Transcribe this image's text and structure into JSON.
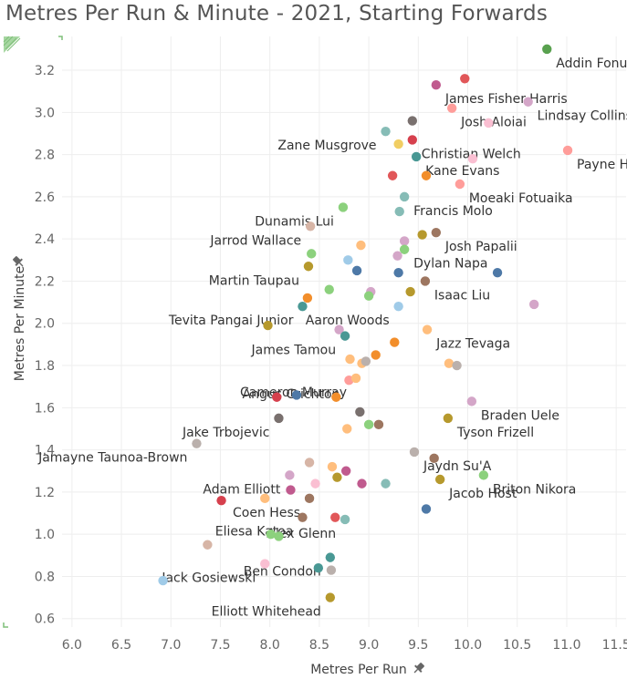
{
  "chart_data": {
    "type": "scatter",
    "title": "Metres Per Run & Minute - 2021, Starting Forwards",
    "xlabel": "Metres Per Run",
    "ylabel": "Metres Per Minute",
    "xlim": [
      5.9,
      11.6
    ],
    "ylim": [
      0.56,
      3.36
    ],
    "xticks": [
      "6.0",
      "6.5",
      "7.0",
      "7.5",
      "8.0",
      "8.5",
      "9.0",
      "9.5",
      "10.0",
      "10.5",
      "11.0",
      "11.5"
    ],
    "xtick_values": [
      6.0,
      6.5,
      7.0,
      7.5,
      8.0,
      8.5,
      9.0,
      9.5,
      10.0,
      10.5,
      11.0,
      11.5
    ],
    "yticks": [
      "0.6",
      "0.8",
      "1.0",
      "1.2",
      "1.4",
      "1.6",
      "1.8",
      "2.0",
      "2.2",
      "2.4",
      "2.6",
      "2.8",
      "3.0",
      "3.2"
    ],
    "ytick_values": [
      0.6,
      0.8,
      1.0,
      1.2,
      1.4,
      1.6,
      1.8,
      2.0,
      2.2,
      2.4,
      2.6,
      2.8,
      3.0,
      3.2
    ],
    "grid": true,
    "points": [
      {
        "x": 10.8,
        "y": 3.3,
        "color": "#59a14f",
        "label": "Addin Fonua-Blake"
      },
      {
        "x": 9.97,
        "y": 3.16,
        "color": "#e15759"
      },
      {
        "x": 9.68,
        "y": 3.13,
        "color": "#c05a8e",
        "label": "James Fisher-Harris"
      },
      {
        "x": 9.84,
        "y": 3.02,
        "color": "#ff9d9a",
        "label": "Josh Aloiai"
      },
      {
        "x": 10.61,
        "y": 3.05,
        "color": "#d4a6c8",
        "label": "Lindsay Collins"
      },
      {
        "x": 9.44,
        "y": 2.96,
        "color": "#79706e"
      },
      {
        "x": 10.21,
        "y": 2.95,
        "color": "#fabfd2"
      },
      {
        "x": 9.17,
        "y": 2.91,
        "color": "#86bcb6",
        "label": "Zane Musgrove"
      },
      {
        "x": 9.44,
        "y": 2.87,
        "color": "#d6404d",
        "label": "Christian Welch"
      },
      {
        "x": 9.3,
        "y": 2.85,
        "color": "#f1ce63"
      },
      {
        "x": 11.01,
        "y": 2.82,
        "color": "#ff9d9a",
        "label": "Payne Haas"
      },
      {
        "x": 9.48,
        "y": 2.79,
        "color": "#499894",
        "label": "Kane Evans"
      },
      {
        "x": 10.05,
        "y": 2.78,
        "color": "#fabfd2"
      },
      {
        "x": 9.24,
        "y": 2.7,
        "color": "#e15759"
      },
      {
        "x": 9.58,
        "y": 2.7,
        "color": "#f28e2b"
      },
      {
        "x": 9.92,
        "y": 2.66,
        "color": "#ff9d9a",
        "label": "Moeaki Fotuaika"
      },
      {
        "x": 9.36,
        "y": 2.6,
        "color": "#86bcb6",
        "label": "Francis Molo"
      },
      {
        "x": 8.74,
        "y": 2.55,
        "color": "#8cd17d",
        "label": "Dunamis Lui"
      },
      {
        "x": 9.31,
        "y": 2.53,
        "color": "#86bcb6"
      },
      {
        "x": 8.41,
        "y": 2.46,
        "color": "#d7b5a6",
        "label": "Jarrod Wallace"
      },
      {
        "x": 9.54,
        "y": 2.42,
        "color": "#b6992d"
      },
      {
        "x": 9.68,
        "y": 2.43,
        "color": "#9d7660",
        "label": "Josh Papalii"
      },
      {
        "x": 9.36,
        "y": 2.39,
        "color": "#d4a6c8"
      },
      {
        "x": 8.92,
        "y": 2.37,
        "color": "#ffbe7d"
      },
      {
        "x": 9.36,
        "y": 2.35,
        "color": "#8cd17d",
        "label": "Dylan Napa"
      },
      {
        "x": 8.42,
        "y": 2.33,
        "color": "#8cd17d"
      },
      {
        "x": 9.29,
        "y": 2.32,
        "color": "#d4a6c8"
      },
      {
        "x": 8.79,
        "y": 2.3,
        "color": "#a0cbe8"
      },
      {
        "x": 8.39,
        "y": 2.27,
        "color": "#b6992d",
        "label": "Martin Taupau"
      },
      {
        "x": 8.88,
        "y": 2.25,
        "color": "#4e79a7"
      },
      {
        "x": 9.3,
        "y": 2.24,
        "color": "#4e79a7"
      },
      {
        "x": 10.3,
        "y": 2.24,
        "color": "#4e79a7"
      },
      {
        "x": 9.57,
        "y": 2.2,
        "color": "#9d7660",
        "label": "Isaac Liu"
      },
      {
        "x": 8.6,
        "y": 2.16,
        "color": "#8cd17d"
      },
      {
        "x": 9.02,
        "y": 2.15,
        "color": "#d4a6c8"
      },
      {
        "x": 9.0,
        "y": 2.13,
        "color": "#8cd17d"
      },
      {
        "x": 9.42,
        "y": 2.15,
        "color": "#b6992d"
      },
      {
        "x": 8.38,
        "y": 2.12,
        "color": "#f28e2b"
      },
      {
        "x": 10.67,
        "y": 2.09,
        "color": "#d4a6c8"
      },
      {
        "x": 8.33,
        "y": 2.08,
        "color": "#499894",
        "label": "Tevita Pangai Junior"
      },
      {
        "x": 9.3,
        "y": 2.08,
        "color": "#a0cbe8",
        "label": "Aaron Woods"
      },
      {
        "x": 7.98,
        "y": 1.99,
        "color": "#b6992d"
      },
      {
        "x": 8.7,
        "y": 1.97,
        "color": "#d4a6c8"
      },
      {
        "x": 8.76,
        "y": 1.94,
        "color": "#499894",
        "label": "James Tamou"
      },
      {
        "x": 9.26,
        "y": 1.91,
        "color": "#f28e2b"
      },
      {
        "x": 9.59,
        "y": 1.97,
        "color": "#ffbe7d",
        "label": "Jazz Tevaga"
      },
      {
        "x": 9.07,
        "y": 1.85,
        "color": "#f28e2b"
      },
      {
        "x": 8.81,
        "y": 1.83,
        "color": "#ffbe7d"
      },
      {
        "x": 8.93,
        "y": 1.81,
        "color": "#ffbe7d"
      },
      {
        "x": 8.97,
        "y": 1.82,
        "color": "#bab0ac"
      },
      {
        "x": 9.81,
        "y": 1.81,
        "color": "#ffbe7d"
      },
      {
        "x": 9.89,
        "y": 1.8,
        "color": "#bab0ac"
      },
      {
        "x": 8.8,
        "y": 1.73,
        "color": "#ff9d9a",
        "label": "Angus Crichton"
      },
      {
        "x": 8.87,
        "y": 1.74,
        "color": "#ffbe7d",
        "label": "Cameron Murray"
      },
      {
        "x": 8.07,
        "y": 1.65,
        "color": "#d6404d"
      },
      {
        "x": 8.27,
        "y": 1.66,
        "color": "#4e79a7"
      },
      {
        "x": 8.67,
        "y": 1.65,
        "color": "#f28e2b"
      },
      {
        "x": 10.04,
        "y": 1.63,
        "color": "#d4a6c8",
        "label": "Braden Uele"
      },
      {
        "x": 8.91,
        "y": 1.58,
        "color": "#79706e"
      },
      {
        "x": 8.09,
        "y": 1.55,
        "color": "#79706e",
        "label": "Jake Trbojevic"
      },
      {
        "x": 9.8,
        "y": 1.55,
        "color": "#b6992d",
        "label": "Tyson Frizell"
      },
      {
        "x": 9.0,
        "y": 1.52,
        "color": "#8cd17d"
      },
      {
        "x": 9.1,
        "y": 1.52,
        "color": "#9d7660"
      },
      {
        "x": 8.78,
        "y": 1.5,
        "color": "#ffbe7d"
      },
      {
        "x": 7.26,
        "y": 1.43,
        "color": "#bab0ac",
        "label": "Jamayne Taunoa-Brown"
      },
      {
        "x": 9.46,
        "y": 1.39,
        "color": "#bab0ac",
        "label": "Jaydn Su'A"
      },
      {
        "x": 9.66,
        "y": 1.36,
        "color": "#9d7660"
      },
      {
        "x": 8.4,
        "y": 1.34,
        "color": "#d7b5a6"
      },
      {
        "x": 8.63,
        "y": 1.32,
        "color": "#ffbe7d"
      },
      {
        "x": 8.77,
        "y": 1.3,
        "color": "#c05a8e"
      },
      {
        "x": 8.2,
        "y": 1.28,
        "color": "#d4a6c8",
        "label": "Adam Elliott"
      },
      {
        "x": 8.68,
        "y": 1.27,
        "color": "#b6992d"
      },
      {
        "x": 10.16,
        "y": 1.28,
        "color": "#8cd17d",
        "label": "Briton Nikora"
      },
      {
        "x": 9.72,
        "y": 1.26,
        "color": "#b6992d",
        "label": "Jacob Host"
      },
      {
        "x": 8.46,
        "y": 1.24,
        "color": "#fabfd2"
      },
      {
        "x": 8.93,
        "y": 1.24,
        "color": "#c05a8e"
      },
      {
        "x": 9.17,
        "y": 1.24,
        "color": "#86bcb6"
      },
      {
        "x": 8.21,
        "y": 1.21,
        "color": "#c05a8e"
      },
      {
        "x": 8.4,
        "y": 1.17,
        "color": "#9d7660",
        "label": "Coen Hess"
      },
      {
        "x": 7.51,
        "y": 1.16,
        "color": "#d6404d"
      },
      {
        "x": 7.95,
        "y": 1.17,
        "color": "#ffbe7d"
      },
      {
        "x": 9.58,
        "y": 1.12,
        "color": "#4e79a7"
      },
      {
        "x": 8.33,
        "y": 1.08,
        "color": "#9d7660",
        "label": "Eliesa Katoa"
      },
      {
        "x": 8.66,
        "y": 1.08,
        "color": "#e15759"
      },
      {
        "x": 8.76,
        "y": 1.07,
        "color": "#86bcb6",
        "label": "Alex Glenn"
      },
      {
        "x": 8.01,
        "y": 1.0,
        "color": "#8cd17d"
      },
      {
        "x": 8.09,
        "y": 0.99,
        "color": "#8cd17d"
      },
      {
        "x": 7.37,
        "y": 0.95,
        "color": "#d7b5a6"
      },
      {
        "x": 8.61,
        "y": 0.89,
        "color": "#499894",
        "label": "Ben Condon"
      },
      {
        "x": 7.95,
        "y": 0.86,
        "color": "#fabfd2",
        "label": "Jack Gosiewski"
      },
      {
        "x": 8.49,
        "y": 0.84,
        "color": "#499894"
      },
      {
        "x": 8.62,
        "y": 0.83,
        "color": "#bab0ac"
      },
      {
        "x": 6.92,
        "y": 0.78,
        "color": "#a0cbe8"
      },
      {
        "x": 8.61,
        "y": 0.7,
        "color": "#b6992d",
        "label": "Elliott Whitehead"
      }
    ]
  }
}
